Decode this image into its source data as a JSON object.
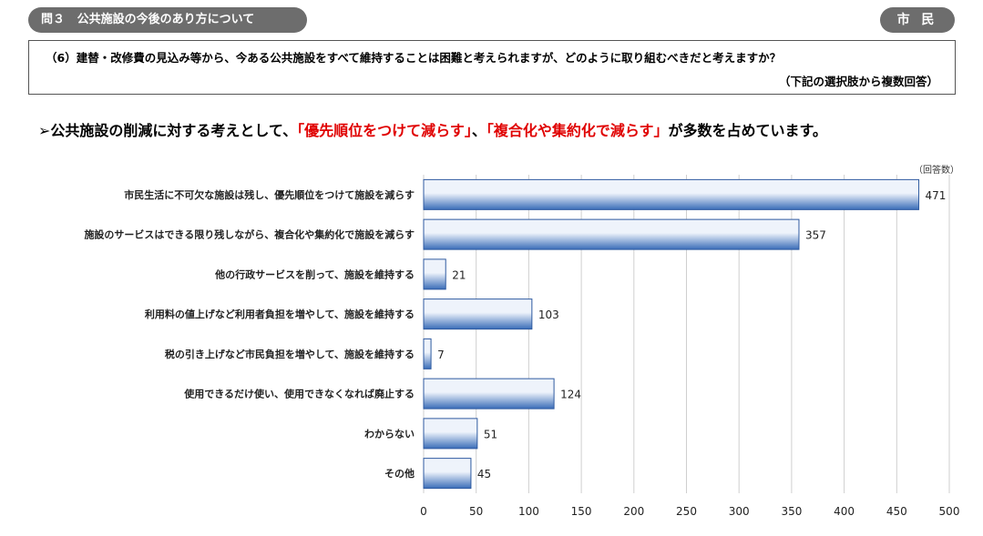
{
  "header": {
    "question_label": "問３",
    "question_title": "公共施設の今後のあり方について",
    "badge": "市 民"
  },
  "question": {
    "text": "（6）建替・改修費の見込み等から、今ある公共施設をすべて維持することは困難と考えられますが、どのように取り組むべきだと考えますか？",
    "note": "（下記の選択肢から複数回答）"
  },
  "headline": {
    "prefix": "➢公共施設の削減に対する考えとして、",
    "highlight1": "「優先順位をつけて減らす」",
    "sep": "、",
    "highlight2": "「複合化や集約化で減らす」",
    "suffix": "が多数を占めています。"
  },
  "colors": {
    "bar_light": "#eef3fb",
    "bar_dark": "#3a6db8",
    "bar_border": "#2e5aa0",
    "grid": "#cfcfcf",
    "accent_red": "#e00000",
    "pill": "#6d6d6d"
  },
  "chart_data": {
    "type": "bar",
    "orientation": "horizontal",
    "unit_label": "（回答数）",
    "categories": [
      "市民生活に不可欠な施設は残し、優先順位をつけて施設を減らす",
      "施設のサービスはできる限り残しながら、複合化や集約化で施設を減らす",
      "他の行政サービスを削って、施設を維持する",
      "利用料の値上げなど利用者負担を増やして、施設を維持する",
      "税の引き上げなど市民負担を増やして、施設を維持する",
      "使用できるだけ使い、使用できなくなれば廃止する",
      "わからない",
      "その他"
    ],
    "values": [
      471,
      357,
      21,
      103,
      7,
      124,
      51,
      45
    ],
    "xlim": [
      0,
      500
    ],
    "xticks": [
      0,
      50,
      100,
      150,
      200,
      250,
      300,
      350,
      400,
      450,
      500
    ],
    "grid": true
  }
}
